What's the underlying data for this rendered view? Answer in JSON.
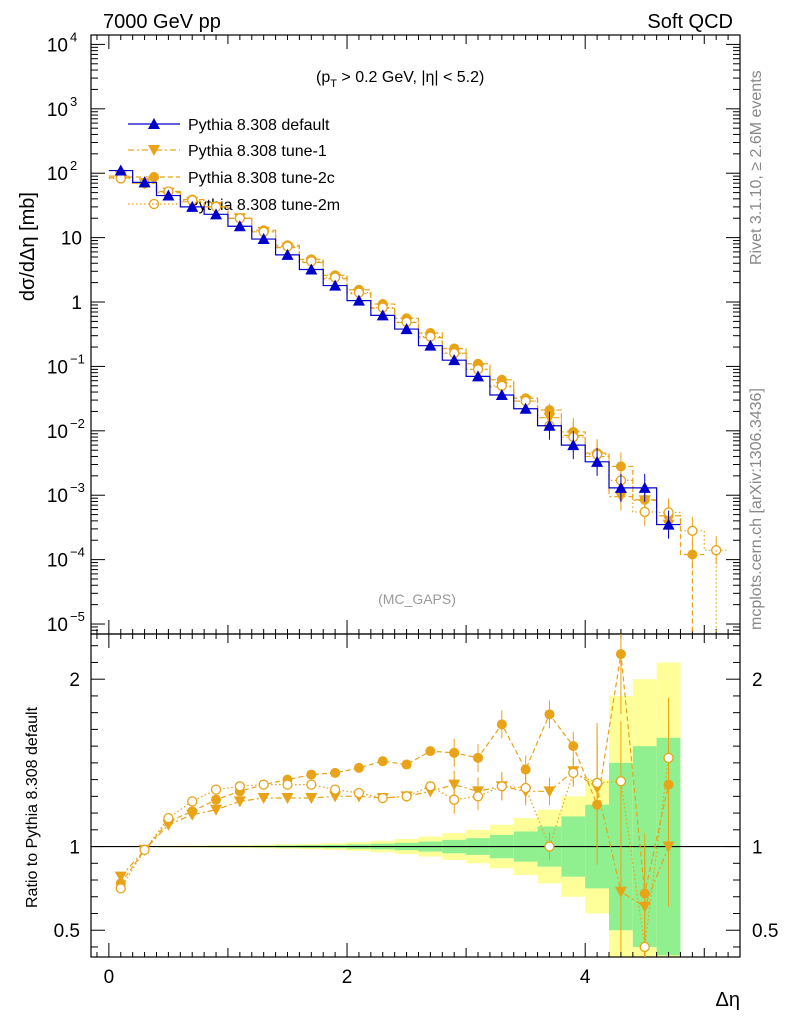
{
  "header": {
    "left": "7000 GeV pp",
    "right": "Soft QCD"
  },
  "side_text": {
    "rivet": "Rivet 3.1.10, ≥ 2.6M events",
    "mcplots": "mcplots.cern.ch [arXiv:1306.3436]"
  },
  "annotation": {
    "pre": "(p",
    "sub": "T",
    "post": " > 0.2 GeV, |η| < 5.2)"
  },
  "watermark": "(MC_GAPS)",
  "colors": {
    "default": "#0000cc",
    "tune": "#e8a317",
    "band_inner": "#90f090",
    "band_outer": "#ffff99"
  },
  "chart_data": [
    {
      "type": "line",
      "ylabel": "dσ/dΔη [mb]",
      "xlabel": "Δη",
      "xlim": [
        -0.15,
        5.3
      ],
      "ylim": [
        7e-06,
        14000
      ],
      "log_y": true,
      "x_ticks": [
        "0",
        "2",
        "4"
      ],
      "y_ticks": [
        {
          "v": 1e-05,
          "base": "10",
          "exp": "−5"
        },
        {
          "v": 0.0001,
          "base": "10",
          "exp": "−4"
        },
        {
          "v": 0.001,
          "base": "10",
          "exp": "−3"
        },
        {
          "v": 0.01,
          "base": "10",
          "exp": "−2"
        },
        {
          "v": 0.1,
          "base": "10",
          "exp": "−1"
        },
        {
          "v": 1,
          "base": "1",
          "exp": ""
        },
        {
          "v": 10,
          "base": "10",
          "exp": ""
        },
        {
          "v": 100,
          "base": "10",
          "exp": "2"
        },
        {
          "v": 1000,
          "base": "10",
          "exp": "3"
        },
        {
          "v": 10000,
          "base": "10",
          "exp": "4"
        }
      ],
      "legend_position": "top-left",
      "series": [
        {
          "name": "Pythia 8.308 default",
          "marker": "triangle-up",
          "color": "#0000cc",
          "x": [
            0.1,
            0.3,
            0.5,
            0.7,
            0.9,
            1.1,
            1.3,
            1.5,
            1.7,
            1.9,
            2.1,
            2.3,
            2.5,
            2.7,
            2.9,
            3.1,
            3.3,
            3.5,
            3.7,
            3.9,
            4.1,
            4.3,
            4.5,
            4.7
          ],
          "y": [
            110,
            72,
            45,
            30,
            23,
            15,
            9.5,
            5.4,
            3.2,
            1.8,
            1.05,
            0.62,
            0.38,
            0.21,
            0.125,
            0.07,
            0.036,
            0.022,
            0.012,
            0.006,
            0.0033,
            0.0013,
            0.0013,
            0.00035
          ]
        },
        {
          "name": "Pythia 8.308 tune-1",
          "marker": "triangle-down",
          "color": "#e8a317",
          "x": [
            0.1,
            0.3,
            0.5,
            0.7,
            0.9,
            1.1,
            1.3,
            1.5,
            1.7,
            1.9,
            2.1,
            2.3,
            2.5,
            2.7,
            2.9,
            3.1,
            3.3,
            3.5,
            3.7,
            3.9,
            4.1,
            4.3,
            4.5,
            4.7
          ],
          "y": [
            90,
            70,
            50,
            36,
            30,
            20,
            12.3,
            7.0,
            4.1,
            2.3,
            1.35,
            0.8,
            0.48,
            0.28,
            0.16,
            0.09,
            0.048,
            0.029,
            0.016,
            0.0085,
            0.004,
            0.00095,
            0.00083,
            0.00035
          ]
        },
        {
          "name": "Pythia 8.308 tune-2c",
          "marker": "circle",
          "color": "#e8a317",
          "x": [
            0.1,
            0.3,
            0.5,
            0.7,
            0.9,
            1.1,
            1.3,
            1.5,
            1.7,
            1.9,
            2.1,
            2.3,
            2.5,
            2.7,
            2.9,
            3.1,
            3.3,
            3.5,
            3.7,
            3.9,
            4.1,
            4.3,
            4.5,
            4.7,
            4.9
          ],
          "y": [
            85,
            70,
            52,
            39,
            30,
            20,
            13,
            7.6,
            4.6,
            2.6,
            1.55,
            0.93,
            0.56,
            0.33,
            0.19,
            0.11,
            0.062,
            0.032,
            0.021,
            0.0096,
            0.0045,
            0.0028,
            0.00085,
            0.00048,
            0.00012
          ]
        },
        {
          "name": "Pythia 8.308 tune-2m",
          "marker": "circle-open",
          "color": "#e8a317",
          "x": [
            0.1,
            0.3,
            0.5,
            0.7,
            0.9,
            1.1,
            1.3,
            1.5,
            1.7,
            1.9,
            2.1,
            2.3,
            2.5,
            2.7,
            2.9,
            3.1,
            3.3,
            3.5,
            3.7,
            3.9,
            4.1,
            4.3,
            4.5,
            4.7,
            4.9,
            5.1
          ],
          "y": [
            83,
            70,
            52,
            38,
            30,
            20,
            12.3,
            7.3,
            4.3,
            2.4,
            1.4,
            0.82,
            0.49,
            0.29,
            0.16,
            0.09,
            0.05,
            0.029,
            0.012,
            0.008,
            0.0043,
            0.0017,
            0.00055,
            0.00054,
            0.00028,
            0.00014
          ]
        }
      ]
    },
    {
      "type": "line",
      "ylabel": "Ratio to Pythia 8.308 default",
      "xlabel": "Δη",
      "xlim": [
        -0.15,
        5.3
      ],
      "ylim": [
        0.34,
        2.27
      ],
      "y_ticks": [
        "0.5",
        "1",
        "2"
      ],
      "band": {
        "edges": [
          0,
          0.2,
          0.4,
          0.6,
          0.8,
          1.0,
          1.2,
          1.4,
          1.6,
          1.8,
          2.0,
          2.2,
          2.4,
          2.6,
          2.8,
          3.0,
          3.2,
          3.4,
          3.6,
          3.8,
          4.0,
          4.2,
          4.4,
          4.6,
          4.8
        ],
        "inner": [
          0.002,
          0.002,
          0.003,
          0.003,
          0.004,
          0.004,
          0.005,
          0.007,
          0.008,
          0.01,
          0.013,
          0.017,
          0.022,
          0.03,
          0.04,
          0.05,
          0.07,
          0.09,
          0.12,
          0.18,
          0.25,
          0.5,
          0.6,
          0.65
        ],
        "outer": [
          0.003,
          0.004,
          0.005,
          0.006,
          0.007,
          0.008,
          0.01,
          0.013,
          0.016,
          0.02,
          0.026,
          0.034,
          0.045,
          0.06,
          0.08,
          0.1,
          0.13,
          0.17,
          0.22,
          0.3,
          0.4,
          0.9,
          1.0,
          1.1
        ]
      },
      "series": [
        {
          "name": "tune-1",
          "marker": "triangle-down",
          "x": [
            0.1,
            0.3,
            0.5,
            0.7,
            0.9,
            1.1,
            1.3,
            1.5,
            1.7,
            1.9,
            2.1,
            2.3,
            2.5,
            2.7,
            2.9,
            3.1,
            3.3,
            3.5,
            3.7,
            3.9,
            4.1,
            4.3,
            4.5,
            4.7
          ],
          "y": [
            0.82,
            0.98,
            1.13,
            1.19,
            1.22,
            1.27,
            1.29,
            1.29,
            1.29,
            1.3,
            1.3,
            1.29,
            1.3,
            1.33,
            1.37,
            1.33,
            1.36,
            1.33,
            1.33,
            1.45,
            1.35,
            0.73,
            0.64,
            1.0
          ]
        },
        {
          "name": "tune-2c",
          "marker": "circle",
          "x": [
            0.1,
            0.3,
            0.5,
            0.7,
            0.9,
            1.1,
            1.3,
            1.5,
            1.7,
            1.9,
            2.1,
            2.3,
            2.5,
            2.7,
            2.9,
            3.1,
            3.3,
            3.5,
            3.7,
            3.9,
            4.1,
            4.3,
            4.5,
            4.7
          ],
          "y": [
            0.78,
            0.98,
            1.15,
            1.21,
            1.28,
            1.33,
            1.37,
            1.4,
            1.43,
            1.44,
            1.47,
            1.51,
            1.49,
            1.57,
            1.56,
            1.53,
            1.73,
            1.46,
            1.79,
            1.6,
            1.25,
            2.15,
            0.72,
            1.37
          ]
        },
        {
          "name": "tune-2m",
          "marker": "circle-open",
          "x": [
            0.1,
            0.3,
            0.5,
            0.7,
            0.9,
            1.1,
            1.3,
            1.5,
            1.7,
            1.9,
            2.1,
            2.3,
            2.5,
            2.7,
            2.9,
            3.1,
            3.3,
            3.5,
            3.7,
            3.9,
            4.1,
            4.3,
            4.5,
            4.7
          ],
          "y": [
            0.75,
            0.98,
            1.17,
            1.27,
            1.34,
            1.36,
            1.37,
            1.37,
            1.37,
            1.34,
            1.32,
            1.29,
            1.3,
            1.36,
            1.28,
            1.3,
            1.36,
            1.35,
            1.0,
            1.44,
            1.38,
            1.39,
            0.4,
            1.53
          ]
        }
      ]
    }
  ]
}
